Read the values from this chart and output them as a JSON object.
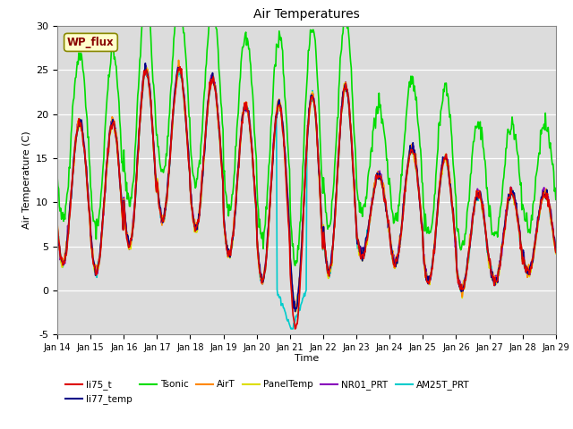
{
  "title": "Air Temperatures",
  "ylabel": "Air Temperature (C)",
  "xlabel": "Time",
  "ylim": [
    -5,
    30
  ],
  "xlim": [
    0,
    15
  ],
  "xtick_labels": [
    "Jan 14",
    "Jan 15",
    "Jan 16",
    "Jan 17",
    "Jan 18",
    "Jan 19",
    "Jan 20",
    "Jan 21",
    "Jan 22",
    "Jan 23",
    "Jan 24",
    "Jan 25",
    "Jan 26",
    "Jan 27",
    "Jan 28",
    "Jan 29"
  ],
  "ytick_values": [
    -5,
    0,
    5,
    10,
    15,
    20,
    25,
    30
  ],
  "series_colors": {
    "li75_t": "#dd0000",
    "li77_temp": "#000088",
    "Tsonic": "#00dd00",
    "AirT": "#ff8800",
    "PanelTemp": "#dddd00",
    "NR01_PRT": "#8800bb",
    "AM25T_PRT": "#00cccc"
  },
  "annotation_text": "WP_flux",
  "annotation_bg": "#ffffcc",
  "annotation_border": "#888800",
  "annotation_text_color": "#880000",
  "background_color": "#dcdcdc",
  "n_points": 720,
  "days": 15
}
